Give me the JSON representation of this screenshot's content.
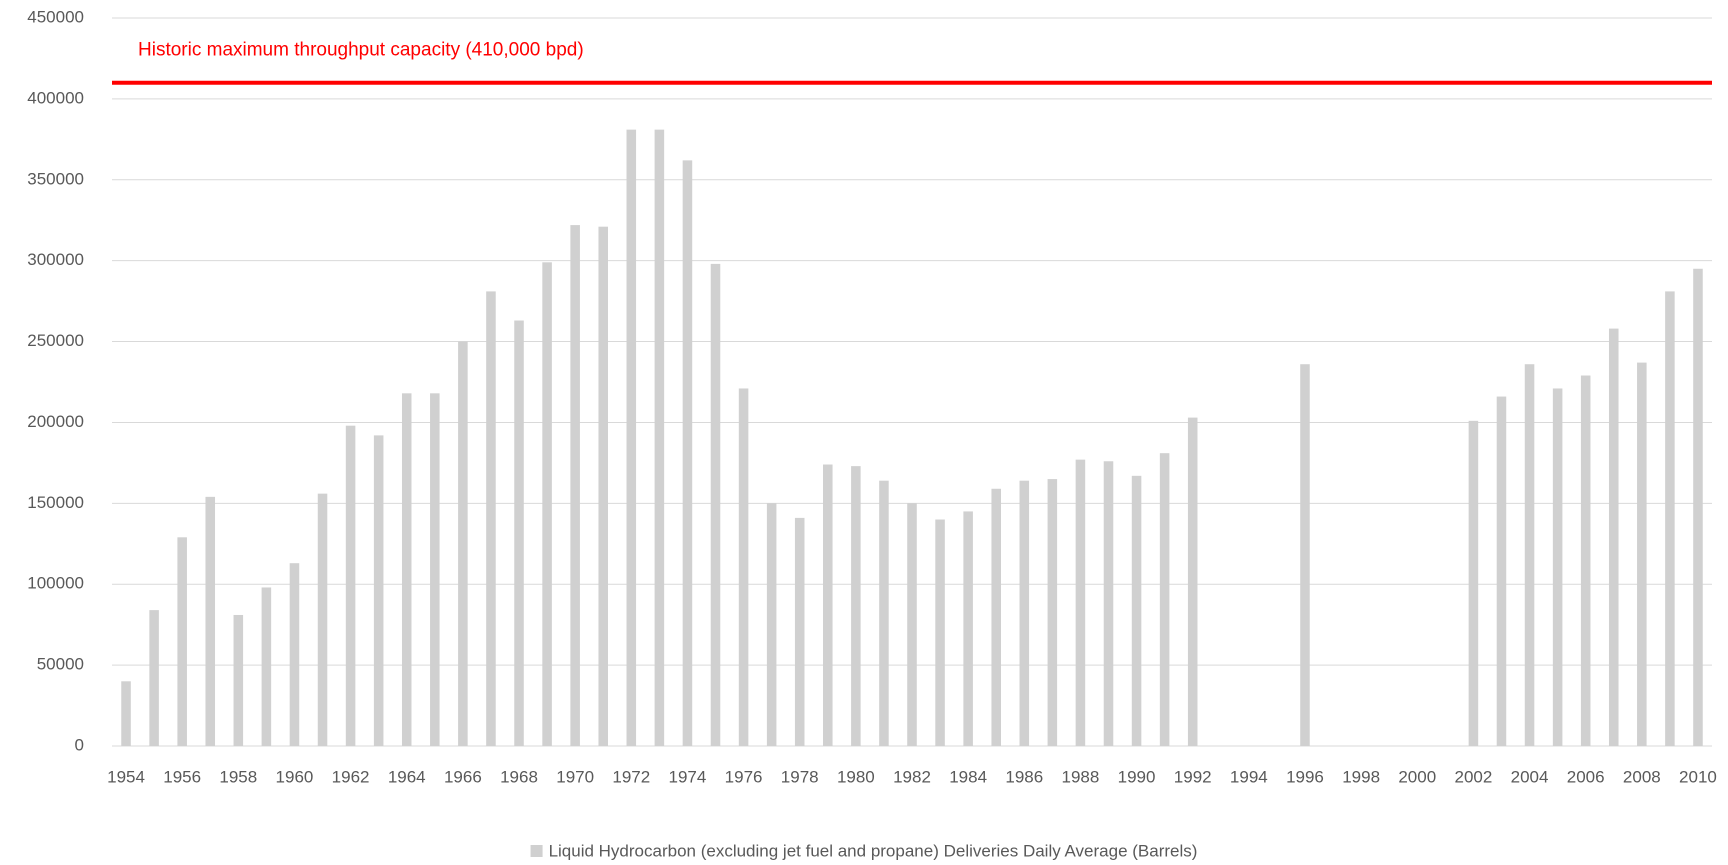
{
  "chart_data": {
    "type": "bar",
    "categories": [
      "1954",
      null,
      "1956",
      null,
      "1958",
      null,
      "1960",
      null,
      "1962",
      null,
      "1964",
      null,
      "1966",
      null,
      "1968",
      null,
      "1970",
      null,
      "1972",
      null,
      "1974",
      null,
      "1976",
      null,
      "1978",
      null,
      "1980",
      null,
      "1982",
      null,
      "1984",
      null,
      "1986",
      null,
      "1988",
      null,
      "1990",
      null,
      "1992",
      null,
      "1994",
      null,
      "1996",
      null,
      "1998",
      null,
      "2000",
      null,
      "2002",
      null,
      "2004",
      null,
      "2006",
      null,
      "2008",
      null,
      "2010"
    ],
    "series": [
      {
        "name": "Liquid Hydrocarbon (excluding jet fuel and propane) Deliveries Daily Average (Barrels)",
        "color": "#d0d0d0",
        "values": [
          40000,
          84000,
          129000,
          154000,
          81000,
          98000,
          113000,
          156000,
          198000,
          192000,
          218000,
          218000,
          250000,
          281000,
          263000,
          299000,
          322000,
          321000,
          381000,
          381000,
          362000,
          298000,
          221000,
          150000,
          141000,
          174000,
          173000,
          164000,
          150000,
          140000,
          145000,
          159000,
          164000,
          165000,
          177000,
          176000,
          167000,
          181000,
          203000,
          null,
          null,
          null,
          236000,
          null,
          null,
          null,
          null,
          null,
          201000,
          216000,
          236000,
          221000,
          229000,
          258000,
          237000,
          281000,
          295000
        ]
      }
    ],
    "reference_line": {
      "label": "Historic maximum throughput capacity (410,000 bpd)",
      "value": 410000,
      "color": "#ff0000"
    },
    "ylim": [
      0,
      450000
    ],
    "yticks": [
      0,
      50000,
      100000,
      150000,
      200000,
      250000,
      300000,
      350000,
      400000,
      450000
    ],
    "grid": true,
    "legend": "bottom"
  }
}
